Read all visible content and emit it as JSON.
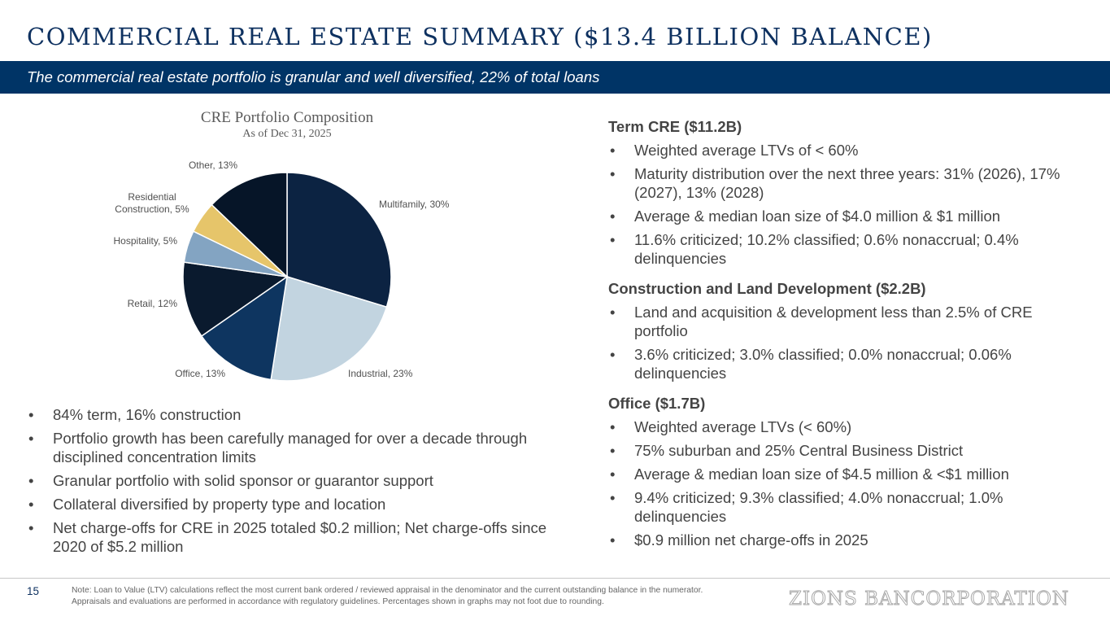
{
  "header": {
    "title": "COMMERCIAL REAL ESTATE SUMMARY ($13.4 BILLION BALANCE)",
    "subtitle": "The commercial real estate portfolio is granular and well diversified, 22% of total loans"
  },
  "chart_data": {
    "type": "pie",
    "title": "CRE Portfolio Composition",
    "subtitle": "As of Dec 31, 2025",
    "categories": [
      "Multifamily",
      "Industrial",
      "Office",
      "Retail",
      "Hospitality",
      "Residential Construction",
      "Other"
    ],
    "values": [
      30,
      23,
      13,
      12,
      5,
      5,
      13
    ],
    "labels": [
      "Multifamily, 30%",
      "Industrial, 23%",
      "Office, 13%",
      "Retail, 12%",
      "Hospitality, 5%",
      "Residential Construction, 5%",
      "Other, 13%"
    ],
    "colors": [
      "#0c2342",
      "#c2d4e0",
      "#0e3560",
      "#0a1a2e",
      "#83a4c2",
      "#e6c56a",
      "#061528"
    ]
  },
  "left_bullets": [
    "84% term, 16% construction",
    "Portfolio growth has been carefully managed for over a decade through disciplined concentration limits",
    "Granular portfolio with solid sponsor or guarantor support",
    "Collateral diversified by property type and location",
    "Net charge-offs for CRE in 2025 totaled $0.2 million; Net charge-offs since 2020 of $5.2 million"
  ],
  "sections": [
    {
      "heading": "Term CRE ($11.2B)",
      "bullets": [
        "Weighted average LTVs of < 60%",
        "Maturity distribution over the next three years: 31% (2026), 17% (2027), 13% (2028)",
        "Average & median loan size of $4.0 million & $1 million",
        "11.6% criticized; 10.2% classified; 0.6% nonaccrual; 0.4% delinquencies"
      ]
    },
    {
      "heading": "Construction and Land Development ($2.2B)",
      "bullets": [
        "Land and acquisition & development less than 2.5% of CRE portfolio",
        "3.6% criticized; 3.0% classified; 0.0% nonaccrual; 0.06% delinquencies"
      ]
    },
    {
      "heading": "Office ($1.7B)",
      "bullets": [
        "Weighted average LTVs (< 60%)",
        "75% suburban and 25% Central Business District",
        "Average & median loan size of $4.5 million & <$1 million",
        "9.4% criticized; 9.3% classified; 4.0% nonaccrual; 1.0% delinquencies",
        "$0.9 million net charge-offs in 2025"
      ]
    }
  ],
  "footer": {
    "page_number": "15",
    "note": "Note: Loan to Value (LTV) calculations reflect the most current bank ordered / reviewed appraisal in the denominator and the current outstanding balance in the numerator. Appraisals and evaluations are performed in accordance with regulatory guidelines. Percentages shown in graphs may not foot due to rounding.",
    "logo_text": "ZIONS BANCORPORATION"
  }
}
